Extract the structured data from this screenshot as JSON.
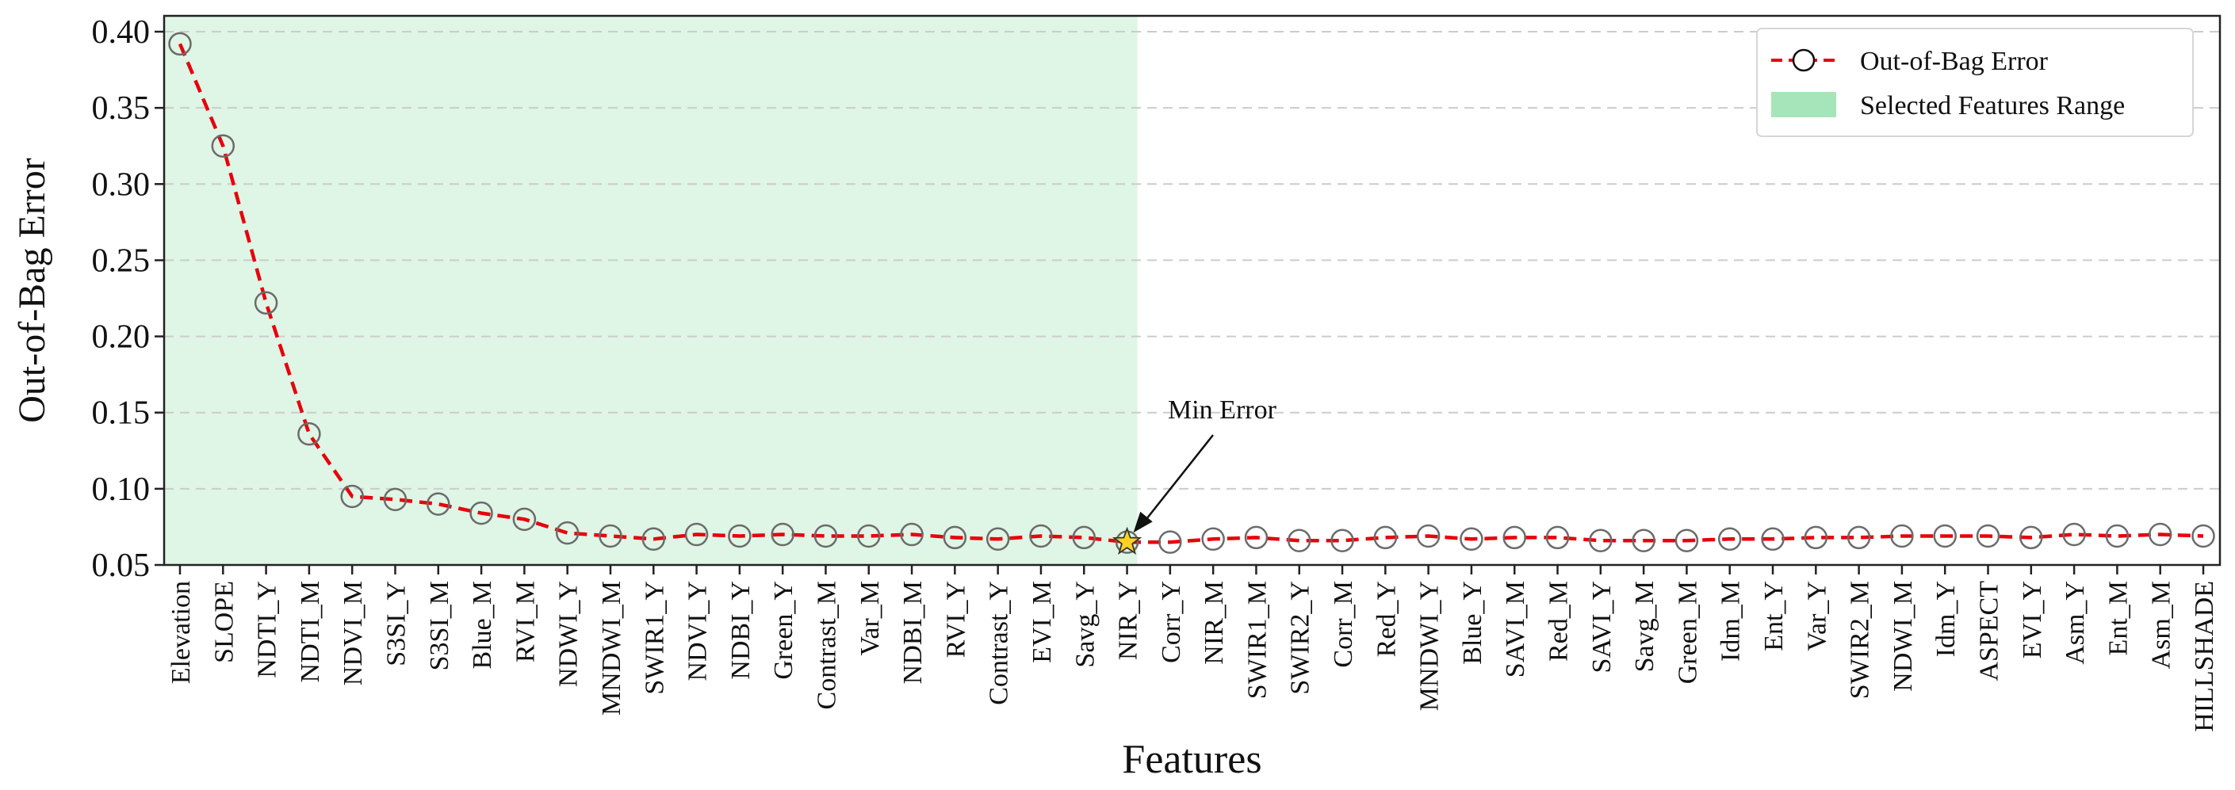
{
  "chart_data": {
    "type": "line",
    "xlabel": "Features",
    "ylabel": "Out-of-Bag Error",
    "ylim": [
      0.05,
      0.4
    ],
    "yticks": [
      "0.05",
      "0.10",
      "0.15",
      "0.20",
      "0.25",
      "0.30",
      "0.35",
      "0.40"
    ],
    "grid": "horizontal dashed",
    "legend_position": "top-right",
    "legend": {
      "line_label": "Out-of-Bag Error",
      "range_label": "Selected Features Range"
    },
    "annotation": {
      "text": "Min Error",
      "feature": "NIR_Y",
      "value": 0.065
    },
    "selected_range": {
      "from": "Elevation",
      "to": "NIR_Y"
    },
    "categories": [
      "Elevation",
      "SLOPE",
      "NDTI_Y",
      "NDTI_M",
      "NDVI_M",
      "S3SI_Y",
      "S3SI_M",
      "Blue_M",
      "RVI_M",
      "NDWI_Y",
      "MNDWI_M",
      "SWIR1_Y",
      "NDVI_Y",
      "NDBI_Y",
      "Green_Y",
      "Contrast_M",
      "Var_M",
      "NDBI_M",
      "RVI_Y",
      "Contrast_Y",
      "EVI_M",
      "Savg_Y",
      "NIR_Y",
      "Corr_Y",
      "NIR_M",
      "SWIR1_M",
      "SWIR2_Y",
      "Corr_M",
      "Red_Y",
      "MNDWI_Y",
      "Blue_Y",
      "SAVI_M",
      "Red_M",
      "SAVI_Y",
      "Savg_M",
      "Green_M",
      "Idm_M",
      "Ent_Y",
      "Var_Y",
      "SWIR2_M",
      "NDWI_M",
      "Idm_Y",
      "ASPECT",
      "EVI_Y",
      "Asm_Y",
      "Ent_M",
      "Asm_M",
      "HILLSHADE"
    ],
    "series": [
      {
        "name": "Out-of-Bag Error",
        "color": "#e8000b",
        "values": [
          0.392,
          0.325,
          0.222,
          0.136,
          0.095,
          0.093,
          0.09,
          0.084,
          0.08,
          0.071,
          0.069,
          0.067,
          0.07,
          0.069,
          0.07,
          0.069,
          0.069,
          0.07,
          0.068,
          0.067,
          0.069,
          0.068,
          0.065,
          0.065,
          0.067,
          0.068,
          0.066,
          0.066,
          0.068,
          0.069,
          0.067,
          0.068,
          0.068,
          0.066,
          0.066,
          0.066,
          0.067,
          0.067,
          0.068,
          0.068,
          0.069,
          0.069,
          0.069,
          0.068,
          0.07,
          0.069,
          0.07,
          0.069
        ]
      }
    ],
    "colors": {
      "line": "#e8000b",
      "marker_edge": "#6b6b6b",
      "range_fill": "#dff5e5",
      "legend_range_swatch": "#a6e5b9",
      "star_fill": "#ffd21f",
      "grid": "#cccccc"
    }
  }
}
